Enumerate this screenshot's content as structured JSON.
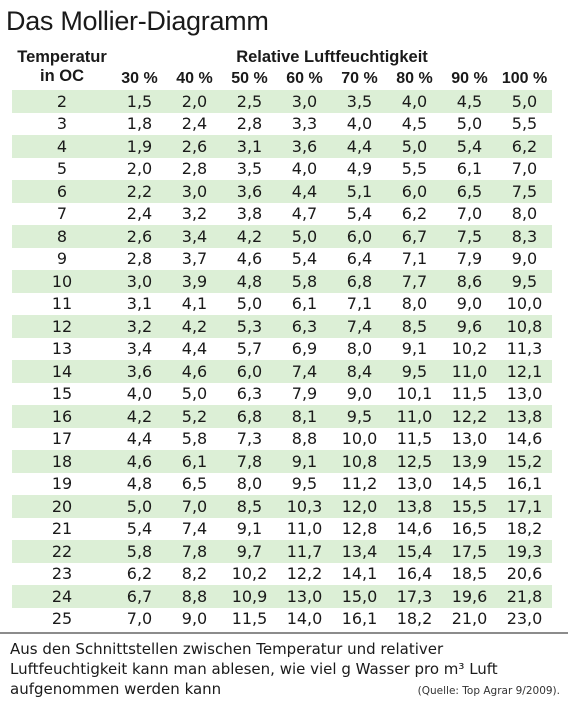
{
  "title": "Das Mollier-Diagramm",
  "header": {
    "temp_line1": "Temperatur",
    "temp_line2": "in OC",
    "group": "Relative Luftfeuchtigkeit",
    "columns": [
      "30 %",
      "40 %",
      "50 %",
      "60 %",
      "70 %",
      "80 %",
      "90 %",
      "100 %"
    ]
  },
  "rows": [
    {
      "t": "2",
      "v": [
        "1,5",
        "2,0",
        "2,5",
        "3,0",
        "3,5",
        "4,0",
        "4,5",
        "5,0"
      ]
    },
    {
      "t": "3",
      "v": [
        "1,8",
        "2,4",
        "2,8",
        "3,3",
        "4,0",
        "4,5",
        "5,0",
        "5,5"
      ]
    },
    {
      "t": "4",
      "v": [
        "1,9",
        "2,6",
        "3,1",
        "3,6",
        "4,4",
        "5,0",
        "5,4",
        "6,2"
      ]
    },
    {
      "t": "5",
      "v": [
        "2,0",
        "2,8",
        "3,5",
        "4,0",
        "4,9",
        "5,5",
        "6,1",
        "7,0"
      ]
    },
    {
      "t": "6",
      "v": [
        "2,2",
        "3,0",
        "3,6",
        "4,4",
        "5,1",
        "6,0",
        "6,5",
        "7,5"
      ]
    },
    {
      "t": "7",
      "v": [
        "2,4",
        "3,2",
        "3,8",
        "4,7",
        "5,4",
        "6,2",
        "7,0",
        "8,0"
      ]
    },
    {
      "t": "8",
      "v": [
        "2,6",
        "3,4",
        "4,2",
        "5,0",
        "6,0",
        "6,7",
        "7,5",
        "8,3"
      ]
    },
    {
      "t": "9",
      "v": [
        "2,8",
        "3,7",
        "4,6",
        "5,4",
        "6,4",
        "7,1",
        "7,9",
        "9,0"
      ]
    },
    {
      "t": "10",
      "v": [
        "3,0",
        "3,9",
        "4,8",
        "5,8",
        "6,8",
        "7,7",
        "8,6",
        "9,5"
      ]
    },
    {
      "t": "11",
      "v": [
        "3,1",
        "4,1",
        "5,0",
        "6,1",
        "7,1",
        "8,0",
        "9,0",
        "10,0"
      ]
    },
    {
      "t": "12",
      "v": [
        "3,2",
        "4,2",
        "5,3",
        "6,3",
        "7,4",
        "8,5",
        "9,6",
        "10,8"
      ]
    },
    {
      "t": "13",
      "v": [
        "3,4",
        "4,4",
        "5,7",
        "6,9",
        "8,0",
        "9,1",
        "10,2",
        "11,3"
      ]
    },
    {
      "t": "14",
      "v": [
        "3,6",
        "4,6",
        "6,0",
        "7,4",
        "8,4",
        "9,5",
        "11,0",
        "12,1"
      ]
    },
    {
      "t": "15",
      "v": [
        "4,0",
        "5,0",
        "6,3",
        "7,9",
        "9,0",
        "10,1",
        "11,5",
        "13,0"
      ]
    },
    {
      "t": "16",
      "v": [
        "4,2",
        "5,2",
        "6,8",
        "8,1",
        "9,5",
        "11,0",
        "12,2",
        "13,8"
      ]
    },
    {
      "t": "17",
      "v": [
        "4,4",
        "5,8",
        "7,3",
        "8,8",
        "10,0",
        "11,5",
        "13,0",
        "14,6"
      ]
    },
    {
      "t": "18",
      "v": [
        "4,6",
        "6,1",
        "7,8",
        "9,1",
        "10,8",
        "12,5",
        "13,9",
        "15,2"
      ]
    },
    {
      "t": "19",
      "v": [
        "4,8",
        "6,5",
        "8,0",
        "9,5",
        "11,2",
        "13,0",
        "14,5",
        "16,1"
      ]
    },
    {
      "t": "20",
      "v": [
        "5,0",
        "7,0",
        "8,5",
        "10,3",
        "12,0",
        "13,8",
        "15,5",
        "17,1"
      ]
    },
    {
      "t": "21",
      "v": [
        "5,4",
        "7,4",
        "9,1",
        "11,0",
        "12,8",
        "14,6",
        "16,5",
        "18,2"
      ]
    },
    {
      "t": "22",
      "v": [
        "5,8",
        "7,8",
        "9,7",
        "11,7",
        "13,4",
        "15,4",
        "17,5",
        "19,3"
      ]
    },
    {
      "t": "23",
      "v": [
        "6,2",
        "8,2",
        "10,2",
        "12,2",
        "14,1",
        "16,4",
        "18,5",
        "20,6"
      ]
    },
    {
      "t": "24",
      "v": [
        "6,7",
        "8,8",
        "10,9",
        "13,0",
        "15,0",
        "17,3",
        "19,6",
        "21,8"
      ]
    },
    {
      "t": "25",
      "v": [
        "7,0",
        "9,0",
        "11,5",
        "14,0",
        "16,1",
        "18,2",
        "21,0",
        "23,0"
      ]
    }
  ],
  "caption": "Aus den Schnittstellen zwischen Temperatur und relativer Luftfeuchtigkeit kann man ablesen, wie viel g Wasser pro m³ Luft aufgenommen werden kann",
  "source": "(Quelle: Top Agrar 9/2009).",
  "colors": {
    "row_shade": "#dcefd6",
    "text": "#1a1a1a",
    "rule": "#8c8c8c"
  }
}
